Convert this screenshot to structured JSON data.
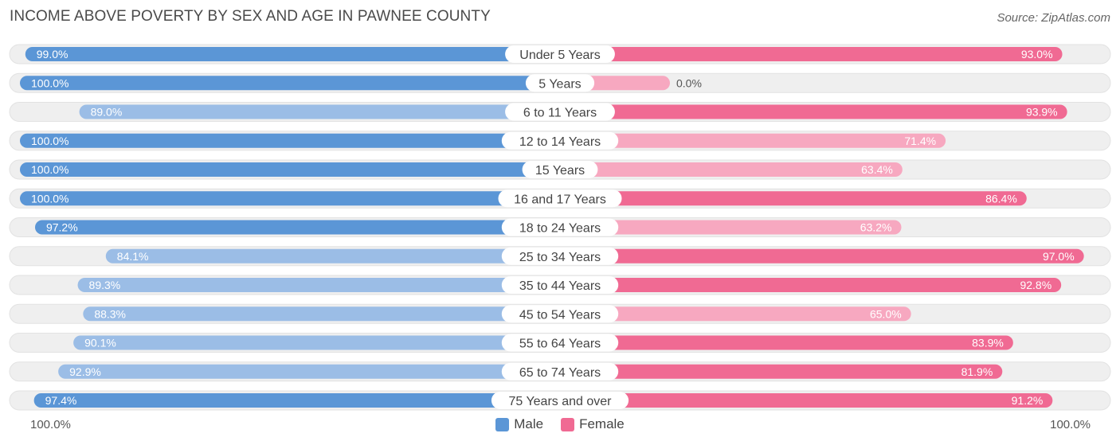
{
  "title": "INCOME ABOVE POVERTY BY SEX AND AGE IN PAWNEE COUNTY",
  "source": "Source: ZipAtlas.com",
  "colors": {
    "male_strong": "#5b96d6",
    "male_light": "#9bbde6",
    "female_strong": "#f06a93",
    "female_light": "#f7a8c0",
    "track": "#efefef"
  },
  "chart_data": {
    "type": "bar",
    "orientation": "horizontal-diverging",
    "title": "INCOME ABOVE POVERTY BY SEX AND AGE IN PAWNEE COUNTY",
    "categories": [
      "Under 5 Years",
      "5 Years",
      "6 to 11 Years",
      "12 to 14 Years",
      "15 Years",
      "16 and 17 Years",
      "18 to 24 Years",
      "25 to 34 Years",
      "35 to 44 Years",
      "45 to 54 Years",
      "55 to 64 Years",
      "65 to 74 Years",
      "75 Years and over"
    ],
    "series": [
      {
        "name": "Male",
        "values": [
          99.0,
          100.0,
          89.0,
          100.0,
          100.0,
          100.0,
          97.2,
          84.1,
          89.3,
          88.3,
          90.1,
          92.9,
          97.4
        ],
        "labels": [
          "99.0%",
          "100.0%",
          "89.0%",
          "100.0%",
          "100.0%",
          "100.0%",
          "97.2%",
          "84.1%",
          "89.3%",
          "88.3%",
          "90.1%",
          "92.9%",
          "97.4%"
        ]
      },
      {
        "name": "Female",
        "values": [
          93.0,
          0.0,
          93.9,
          71.4,
          63.4,
          86.4,
          63.2,
          97.0,
          92.8,
          65.0,
          83.9,
          81.9,
          91.2
        ],
        "labels": [
          "93.0%",
          "0.0%",
          "93.9%",
          "71.4%",
          "63.4%",
          "86.4%",
          "63.2%",
          "97.0%",
          "92.8%",
          "65.0%",
          "83.9%",
          "81.9%",
          "91.2%"
        ]
      }
    ],
    "xlim": [
      0,
      100
    ],
    "axis_left_label": "100.0%",
    "axis_right_label": "100.0%",
    "legend": [
      "Male",
      "Female"
    ],
    "legend_position": "bottom-center"
  }
}
